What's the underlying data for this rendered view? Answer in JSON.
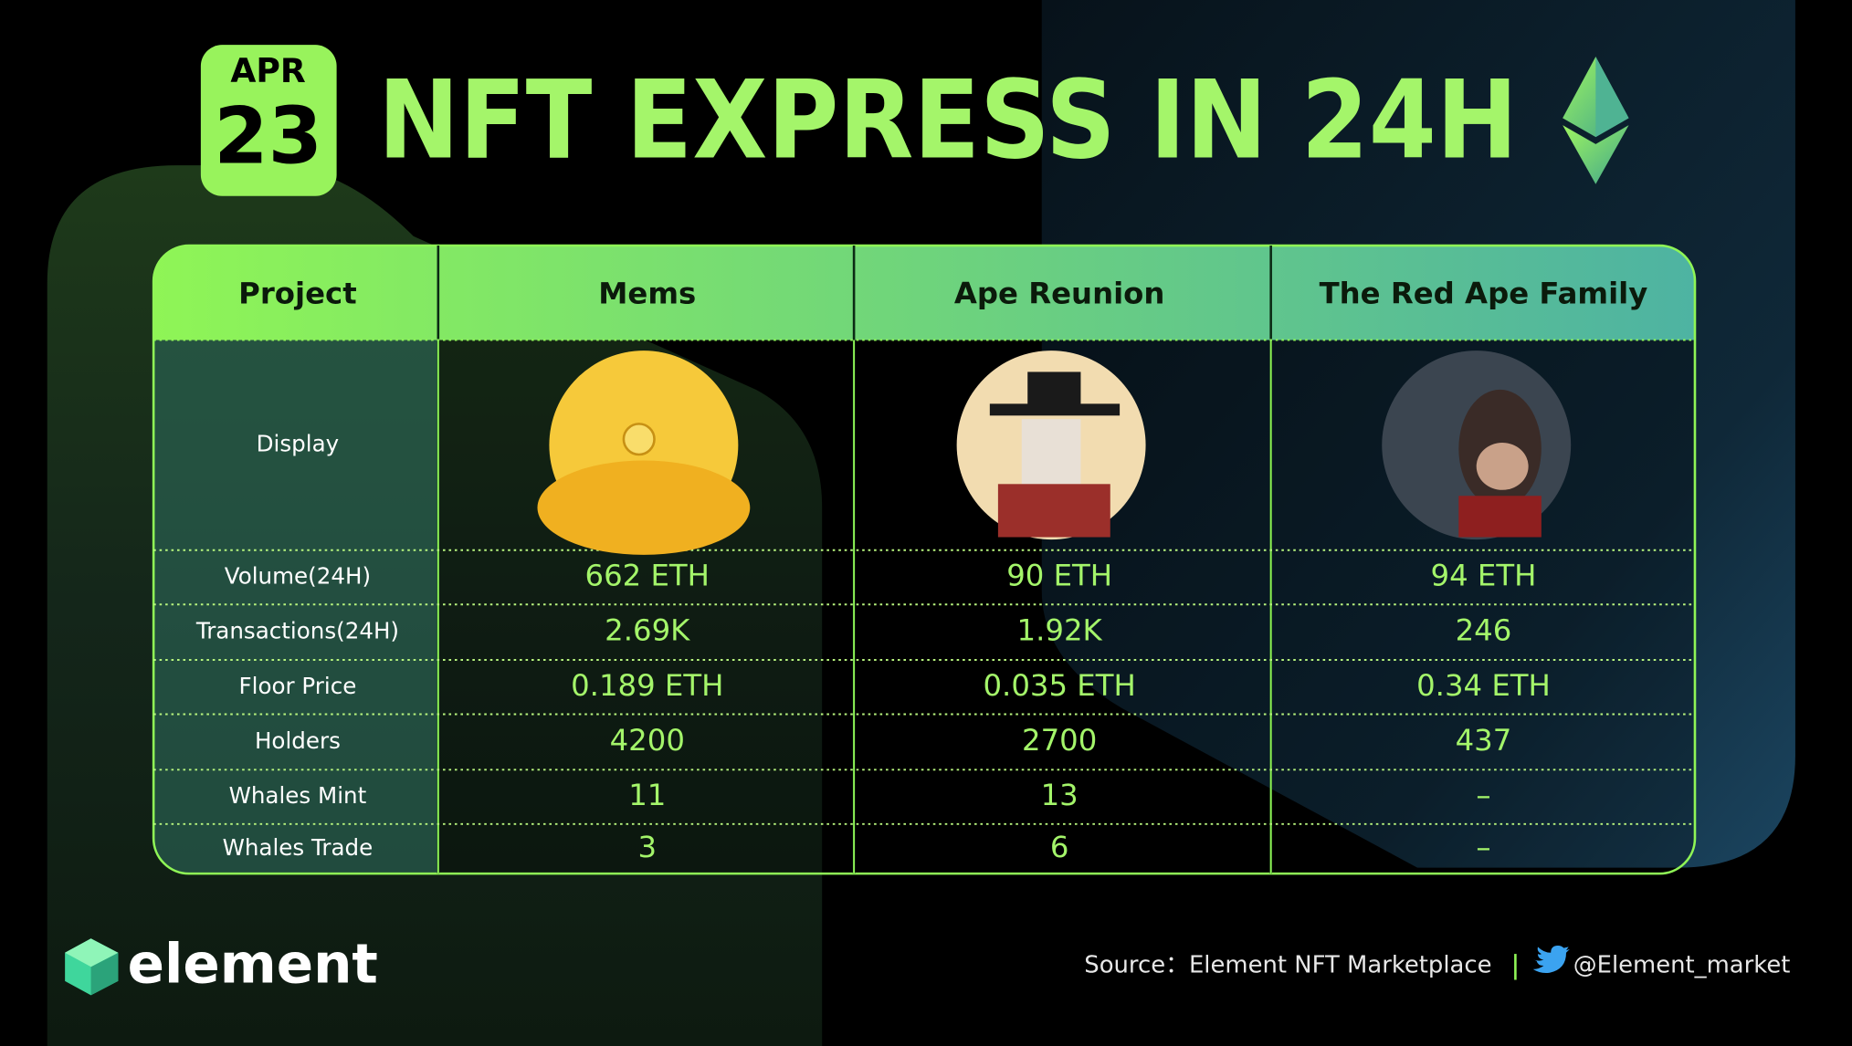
{
  "header": {
    "month": "APR",
    "day": "23",
    "title": "NFT EXPRESS IN 24H"
  },
  "table": {
    "columns": [
      "Project",
      "Mems",
      "Ape Reunion",
      "The Red Ape Family"
    ],
    "rows": [
      [
        "Display"
      ],
      [
        "Volume(24H)",
        "662 ETH",
        "90 ETH",
        "94 ETH"
      ],
      [
        "Transactions(24H)",
        "2.69K",
        "1.92K",
        "246"
      ],
      [
        "Floor Price",
        "0.189 ETH",
        "0.035 ETH",
        "0.34 ETH"
      ],
      [
        "Holders",
        "4200",
        "2700",
        "437"
      ],
      [
        "Whales Mint",
        "11",
        "13",
        "–"
      ],
      [
        "Whales Trade",
        "3",
        "6",
        "–"
      ]
    ]
  },
  "footer": {
    "brand": "element",
    "source": "Source：Element NFT Marketplace",
    "twitter": "@Element_market"
  }
}
